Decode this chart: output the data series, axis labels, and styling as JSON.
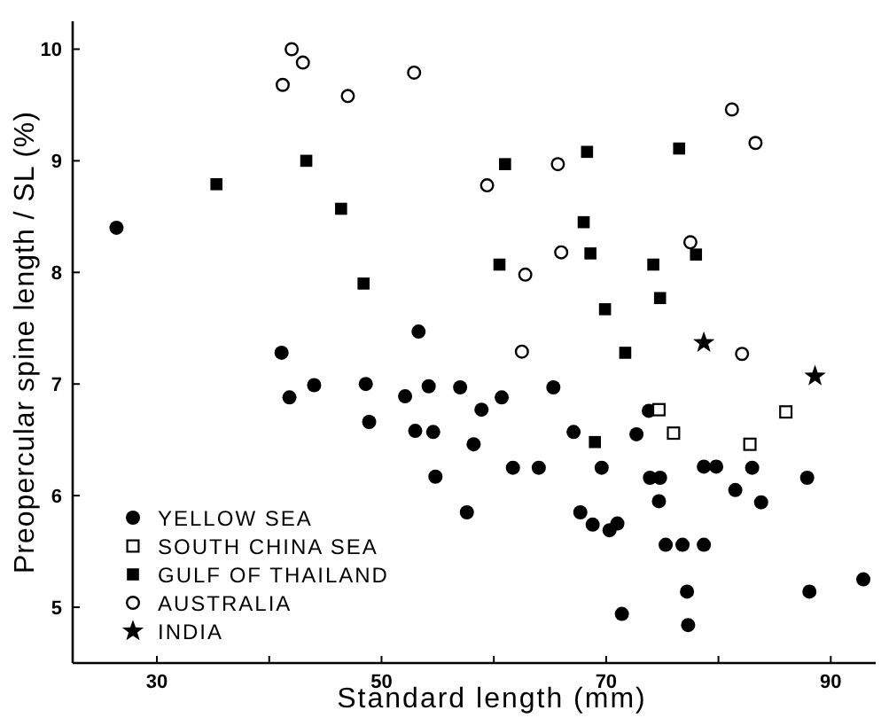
{
  "chart_data": {
    "type": "scatter",
    "xlabel": "Standard length (mm)",
    "ylabel": "Preopercular spine length / SL (%)",
    "xlim": [
      22.5,
      94
    ],
    "ylim": [
      4.5,
      10.25
    ],
    "xticks": [
      30,
      {
        "value": 40,
        "label": null
      },
      50,
      {
        "value": 60,
        "label": null
      },
      70,
      {
        "value": 80,
        "label": null
      },
      90
    ],
    "yticks": [
      5,
      6,
      7,
      8,
      9,
      10
    ],
    "grid": false,
    "legend": "bottom left",
    "series": [
      {
        "name": "YELLOW SEA",
        "color": "#000000",
        "marker": "circle",
        "x": [
          26.4,
          41.1,
          41.8,
          44.0,
          48.6,
          48.9,
          53.3,
          52.1,
          53.0,
          54.2,
          54.6,
          54.8,
          57.0,
          58.9,
          60.7,
          65.3,
          58.2,
          57.6,
          61.7,
          64.0,
          67.1,
          69.6,
          67.7,
          68.8,
          70.3,
          71.0,
          72.7,
          73.8,
          73.9,
          74.8,
          74.7,
          71.4,
          75.3,
          76.8,
          78.7,
          77.2,
          77.3,
          78.7,
          79.8,
          81.5,
          83.0,
          83.8,
          87.9,
          88.1,
          92.9
        ],
        "values": [
          8.4,
          7.28,
          6.88,
          6.99,
          7.0,
          6.66,
          7.47,
          6.89,
          6.58,
          6.98,
          6.57,
          6.17,
          6.97,
          6.77,
          6.88,
          6.97,
          6.46,
          5.85,
          6.25,
          6.25,
          6.57,
          6.25,
          5.85,
          5.74,
          5.69,
          5.75,
          6.55,
          6.76,
          6.16,
          6.16,
          5.95,
          4.94,
          5.56,
          5.56,
          5.56,
          5.14,
          4.84,
          6.26,
          6.26,
          6.05,
          6.25,
          5.94,
          6.16,
          5.14,
          5.25
        ]
      },
      {
        "name": "SOUTH CHINA SEA",
        "color": "#000000",
        "marker": "square-open",
        "x": [
          74.7,
          76.0,
          82.8,
          86.0
        ],
        "values": [
          6.77,
          6.56,
          6.46,
          6.75
        ]
      },
      {
        "name": "GULF OF THAILAND",
        "color": "#000000",
        "marker": "square",
        "x": [
          35.3,
          43.3,
          46.4,
          48.4,
          61.0,
          68.3,
          76.5,
          60.5,
          68.0,
          68.6,
          74.2,
          78.0,
          69.9,
          74.8,
          71.7,
          69.0
        ],
        "values": [
          8.79,
          9.0,
          8.57,
          7.9,
          8.97,
          9.08,
          9.11,
          8.07,
          8.45,
          8.17,
          8.07,
          8.16,
          7.67,
          7.77,
          7.28,
          6.48
        ]
      },
      {
        "name": "AUSTRALIA",
        "color": "#000000",
        "marker": "circle-open",
        "x": [
          41.2,
          42.0,
          43.0,
          47.0,
          52.9,
          81.2,
          83.3,
          59.4,
          65.7,
          62.8,
          66.0,
          77.5,
          62.5,
          82.1
        ],
        "values": [
          9.68,
          10.0,
          9.88,
          9.58,
          9.79,
          9.46,
          9.16,
          8.78,
          8.97,
          7.98,
          8.18,
          8.27,
          7.29,
          7.27
        ]
      },
      {
        "name": "INDIA",
        "color": "#000000",
        "marker": "star",
        "x": [
          78.7,
          88.6
        ],
        "values": [
          7.37,
          7.07
        ]
      }
    ]
  }
}
